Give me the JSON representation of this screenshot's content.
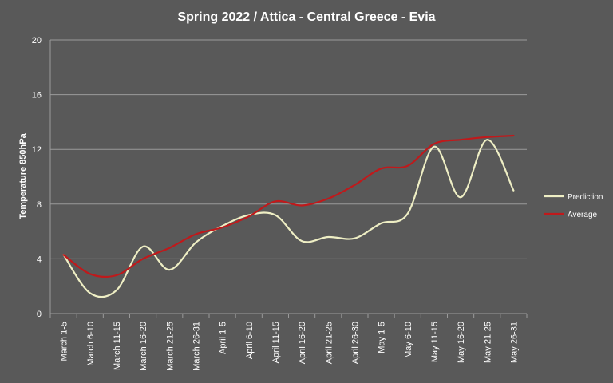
{
  "chart_data": {
    "type": "line",
    "title": "Spring 2022 / Attica - Central Greece - Evia",
    "xlabel": "",
    "ylabel": "Temperature 850hPa",
    "ylim": [
      0,
      20
    ],
    "yticks": [
      0,
      4,
      8,
      12,
      16,
      20
    ],
    "grid": true,
    "legend_position": "right",
    "categories": [
      "March 1-5",
      "March 6-10",
      "March 11-15",
      "March 16-20",
      "March 21-25",
      "March 26-31",
      "April 1-5",
      "April 6-10",
      "April 11-15",
      "April 16-20",
      "April 21-25",
      "April 26-30",
      "May 1-5",
      "May 6-10",
      "May 11-15",
      "May 16-20",
      "May 21-25",
      "May 26-31"
    ],
    "series": [
      {
        "name": "Prediction",
        "color": "#eeeec4",
        "values": [
          4.3,
          1.5,
          1.7,
          4.9,
          3.2,
          5.2,
          6.4,
          7.2,
          7.2,
          5.3,
          5.6,
          5.5,
          6.6,
          7.3,
          12.2,
          8.5,
          12.7,
          9.0
        ]
      },
      {
        "name": "Average",
        "color": "#c0191b",
        "values": [
          4.3,
          2.9,
          2.8,
          4.0,
          4.8,
          5.8,
          6.3,
          7.1,
          8.2,
          7.9,
          8.4,
          9.4,
          10.6,
          10.8,
          12.4,
          12.7,
          12.9,
          13.0
        ]
      }
    ]
  }
}
